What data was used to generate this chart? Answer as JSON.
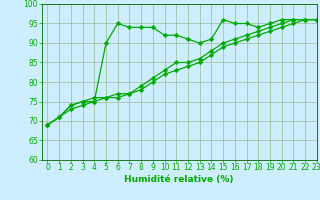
{
  "x": [
    0,
    1,
    2,
    3,
    4,
    5,
    6,
    7,
    8,
    9,
    10,
    11,
    12,
    13,
    14,
    15,
    16,
    17,
    18,
    19,
    20,
    21,
    22,
    23
  ],
  "line1": [
    69,
    71,
    74,
    75,
    75,
    90,
    95,
    94,
    94,
    94,
    92,
    92,
    91,
    90,
    91,
    96,
    95,
    95,
    94,
    95,
    96,
    96,
    96,
    96
  ],
  "line2": [
    69,
    71,
    74,
    75,
    76,
    76,
    76,
    77,
    79,
    81,
    83,
    85,
    85,
    86,
    88,
    90,
    91,
    92,
    93,
    94,
    95,
    96,
    96,
    96
  ],
  "line3": [
    69,
    71,
    73,
    74,
    75,
    76,
    77,
    77,
    78,
    80,
    82,
    83,
    84,
    85,
    87,
    89,
    90,
    91,
    92,
    93,
    94,
    95,
    96,
    96
  ],
  "line_color": "#00aa00",
  "marker": "D",
  "markersize": 2.2,
  "linewidth": 0.9,
  "xlabel": "Humidité relative (%)",
  "ylim": [
    60,
    100
  ],
  "xlim": [
    -0.5,
    23
  ],
  "yticks": [
    60,
    65,
    70,
    75,
    80,
    85,
    90,
    95,
    100
  ],
  "xticks": [
    0,
    1,
    2,
    3,
    4,
    5,
    6,
    7,
    8,
    9,
    10,
    11,
    12,
    13,
    14,
    15,
    16,
    17,
    18,
    19,
    20,
    21,
    22,
    23
  ],
  "bg_color": "#cceeff",
  "grid_color": "#99bb99",
  "axes_color": "#006600",
  "font_color": "#00aa00",
  "tick_fontsize": 5.5,
  "xlabel_fontsize": 6.5
}
